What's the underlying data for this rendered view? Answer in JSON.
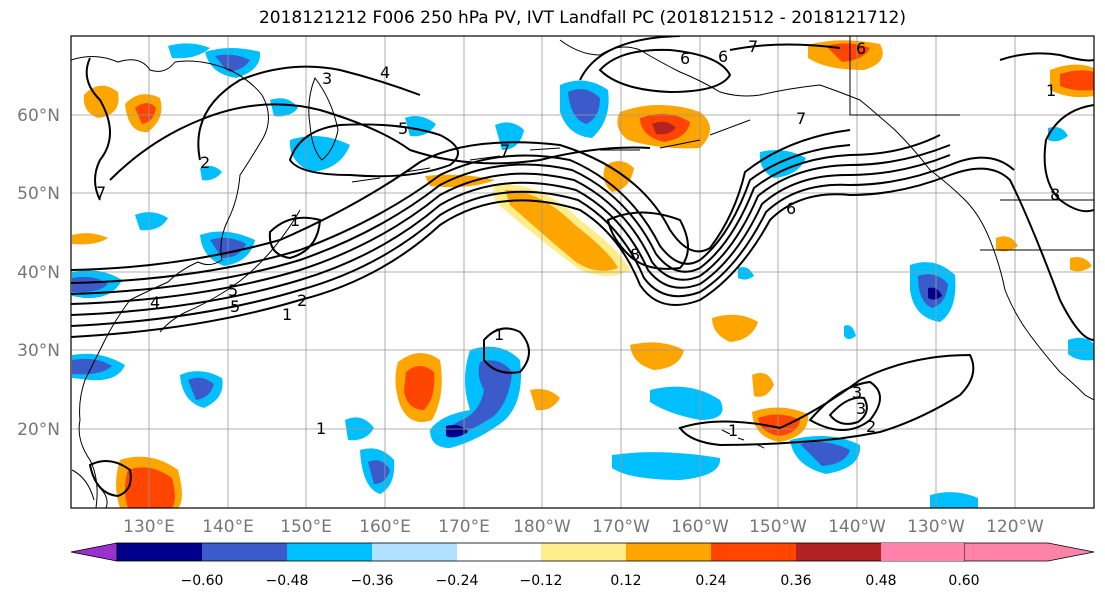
{
  "title": "2018121212 F006 250 hPa PV, IVT Landfall PC (2018121512 - 2018121712)",
  "map": {
    "lat_labels": [
      {
        "text": "60°N",
        "lat": 60
      },
      {
        "text": "50°N",
        "lat": 50
      },
      {
        "text": "40°N",
        "lat": 40
      },
      {
        "text": "30°N",
        "lat": 30
      },
      {
        "text": "20°N",
        "lat": 20
      }
    ],
    "lon_labels": [
      {
        "text": "130°E",
        "lon": 130
      },
      {
        "text": "140°E",
        "lon": 140
      },
      {
        "text": "150°E",
        "lon": 150
      },
      {
        "text": "160°E",
        "lon": 160
      },
      {
        "text": "170°E",
        "lon": 170
      },
      {
        "text": "180°W",
        "lon": 180
      },
      {
        "text": "170°W",
        "lon": 190
      },
      {
        "text": "160°W",
        "lon": 200
      },
      {
        "text": "150°W",
        "lon": 210
      },
      {
        "text": "140°W",
        "lon": 220
      },
      {
        "text": "130°W",
        "lon": 230
      },
      {
        "text": "120°W",
        "lon": 240
      }
    ],
    "extent": {
      "lon_min": 120,
      "lon_max": 250,
      "lat_min": 10,
      "lat_max": 70
    },
    "contour_labels": [
      "1",
      "2",
      "3",
      "4",
      "5",
      "6",
      "7",
      "8",
      "1",
      "2",
      "3",
      "4",
      "5",
      "6",
      "7",
      "8",
      "7",
      "7",
      "6",
      "6",
      "5",
      "3",
      "2",
      "1",
      "1",
      "1",
      "1"
    ],
    "colors": {
      "land_outline": "#000000",
      "grid": "#999999",
      "contour": "#000000",
      "axis_label": "#777777"
    }
  },
  "colorbar": {
    "colors": [
      "#9932cc",
      "#00008b",
      "#3a5bc9",
      "#00bfff",
      "#b0e2ff",
      "#ffffff",
      "#ffec8b",
      "#ffa500",
      "#ff4500",
      "#b22222",
      "#ff82ab"
    ],
    "tick_labels": [
      "−0.60",
      "−0.48",
      "−0.36",
      "−0.24",
      "−0.12",
      "0.12",
      "0.24",
      "0.36",
      "0.48",
      "0.60"
    ]
  }
}
